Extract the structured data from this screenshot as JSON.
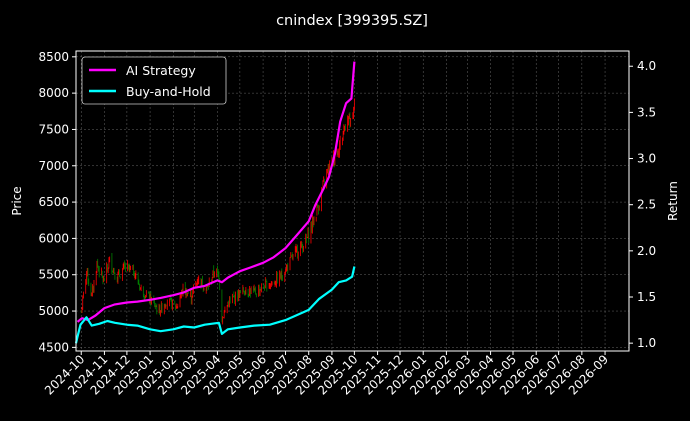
{
  "chart_data": {
    "type": "line",
    "title": "cnindex [399395.SZ]",
    "xlabel": "",
    "ylabel": "Price",
    "ylabel_right": "Return",
    "x_ticks": [
      "2024-10",
      "2024-11",
      "2024-12",
      "2025-01",
      "2025-02",
      "2025-03",
      "2025-04",
      "2025-05",
      "2025-06",
      "2025-07",
      "2025-08",
      "2025-09",
      "2025-10",
      "2025-11",
      "2025-12",
      "2026-01",
      "2026-02",
      "2026-03",
      "2026-04",
      "2026-05",
      "2026-06",
      "2026-07",
      "2026-08",
      "2026-09"
    ],
    "xlim": [
      "2024-09-24",
      "2026-10-03"
    ],
    "ylim": [
      4450,
      8580
    ],
    "ylim_right": [
      0.915,
      4.165
    ],
    "y_ticks": [
      4500,
      5000,
      5500,
      6000,
      6500,
      7000,
      7500,
      8000,
      8500
    ],
    "y_ticks_right": [
      "1.0",
      "1.5",
      "2.0",
      "2.5",
      "3.0",
      "3.5",
      "4.0"
    ],
    "grid": true,
    "legend": "top-left",
    "colors": {
      "background": "#000000",
      "ai": "#ff00ff",
      "bh": "#00ffff",
      "up": "#ff0000",
      "down": "#008000",
      "grid": "#808080"
    },
    "price_anchors": [
      [
        "2024-10-01",
        4980
      ],
      [
        "2024-10-08",
        5550
      ],
      [
        "2024-10-15",
        5200
      ],
      [
        "2024-10-22",
        5650
      ],
      [
        "2024-10-31",
        5400
      ],
      [
        "2024-11-08",
        5700
      ],
      [
        "2024-11-18",
        5450
      ],
      [
        "2024-11-28",
        5600
      ],
      [
        "2024-12-10",
        5550
      ],
      [
        "2024-12-20",
        5300
      ],
      [
        "2025-01-02",
        5150
      ],
      [
        "2025-01-13",
        5000
      ],
      [
        "2025-01-24",
        5150
      ],
      [
        "2025-02-05",
        5050
      ],
      [
        "2025-02-14",
        5300
      ],
      [
        "2025-02-25",
        5200
      ],
      [
        "2025-03-06",
        5450
      ],
      [
        "2025-03-18",
        5300
      ],
      [
        "2025-03-28",
        5550
      ],
      [
        "2025-04-03",
        5500
      ],
      [
        "2025-04-07",
        4900
      ],
      [
        "2025-04-15",
        5100
      ],
      [
        "2025-04-25",
        5200
      ],
      [
        "2025-05-08",
        5300
      ],
      [
        "2025-05-20",
        5250
      ],
      [
        "2025-06-03",
        5350
      ],
      [
        "2025-06-16",
        5400
      ],
      [
        "2025-06-27",
        5500
      ],
      [
        "2025-07-08",
        5700
      ],
      [
        "2025-07-18",
        5850
      ],
      [
        "2025-07-28",
        5950
      ],
      [
        "2025-08-06",
        6200
      ],
      [
        "2025-08-15",
        6500
      ],
      [
        "2025-08-25",
        6900
      ],
      [
        "2025-09-03",
        7100
      ],
      [
        "2025-09-12",
        7300
      ],
      [
        "2025-09-22",
        7700
      ],
      [
        "2025-09-28",
        7500
      ],
      [
        "2025-10-01",
        7900
      ]
    ],
    "series": [
      {
        "name": "AI Strategy",
        "values": [
          [
            "2024-09-26",
            1.23
          ],
          [
            "2024-10-02",
            1.27
          ],
          [
            "2024-10-10",
            1.25
          ],
          [
            "2024-10-20",
            1.3
          ],
          [
            "2024-11-01",
            1.38
          ],
          [
            "2024-11-15",
            1.42
          ],
          [
            "2024-12-01",
            1.44
          ],
          [
            "2024-12-15",
            1.45
          ],
          [
            "2025-01-01",
            1.47
          ],
          [
            "2025-01-15",
            1.49
          ],
          [
            "2025-02-01",
            1.52
          ],
          [
            "2025-02-15",
            1.55
          ],
          [
            "2025-03-01",
            1.6
          ],
          [
            "2025-03-15",
            1.62
          ],
          [
            "2025-04-01",
            1.68
          ],
          [
            "2025-04-07",
            1.66
          ],
          [
            "2025-04-15",
            1.71
          ],
          [
            "2025-05-01",
            1.78
          ],
          [
            "2025-05-15",
            1.82
          ],
          [
            "2025-06-01",
            1.87
          ],
          [
            "2025-06-15",
            1.93
          ],
          [
            "2025-07-01",
            2.03
          ],
          [
            "2025-07-15",
            2.16
          ],
          [
            "2025-08-01",
            2.32
          ],
          [
            "2025-08-10",
            2.5
          ],
          [
            "2025-08-20",
            2.66
          ],
          [
            "2025-08-28",
            2.8
          ],
          [
            "2025-09-05",
            3.05
          ],
          [
            "2025-09-12",
            3.4
          ],
          [
            "2025-09-20",
            3.6
          ],
          [
            "2025-09-27",
            3.65
          ],
          [
            "2025-10-01",
            4.05
          ]
        ]
      },
      {
        "name": "Buy-and-Hold",
        "values": [
          [
            "2024-09-24",
            1.0
          ],
          [
            "2024-09-26",
            1.07
          ],
          [
            "2024-09-30",
            1.2
          ],
          [
            "2024-10-08",
            1.28
          ],
          [
            "2024-10-15",
            1.19
          ],
          [
            "2024-10-25",
            1.21
          ],
          [
            "2024-11-05",
            1.24
          ],
          [
            "2024-11-15",
            1.22
          ],
          [
            "2024-12-01",
            1.2
          ],
          [
            "2024-12-15",
            1.19
          ],
          [
            "2025-01-01",
            1.15
          ],
          [
            "2025-01-15",
            1.13
          ],
          [
            "2025-02-01",
            1.15
          ],
          [
            "2025-02-15",
            1.18
          ],
          [
            "2025-03-01",
            1.17
          ],
          [
            "2025-03-15",
            1.2
          ],
          [
            "2025-04-03",
            1.22
          ],
          [
            "2025-04-07",
            1.1
          ],
          [
            "2025-04-15",
            1.15
          ],
          [
            "2025-05-01",
            1.17
          ],
          [
            "2025-05-20",
            1.19
          ],
          [
            "2025-06-10",
            1.2
          ],
          [
            "2025-07-01",
            1.25
          ],
          [
            "2025-07-15",
            1.3
          ],
          [
            "2025-08-01",
            1.36
          ],
          [
            "2025-08-15",
            1.48
          ],
          [
            "2025-09-01",
            1.58
          ],
          [
            "2025-09-10",
            1.66
          ],
          [
            "2025-09-20",
            1.68
          ],
          [
            "2025-09-28",
            1.72
          ],
          [
            "2025-10-01",
            1.83
          ]
        ]
      }
    ]
  }
}
